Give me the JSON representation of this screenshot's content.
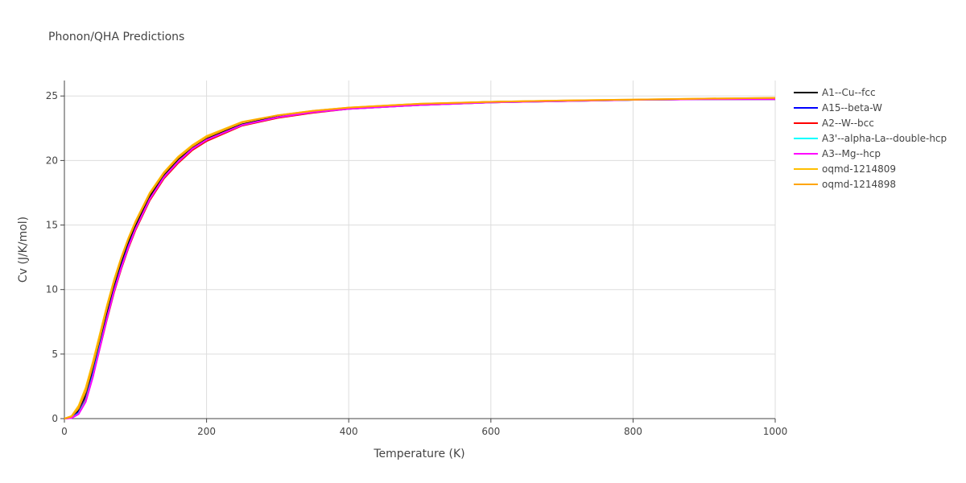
{
  "chart_data": {
    "type": "line",
    "title": "Phonon/QHA Predictions",
    "xlabel": "Temperature (K)",
    "ylabel": "Cv (J/K/mol)",
    "x": [
      0,
      10,
      20,
      30,
      40,
      50,
      60,
      70,
      80,
      90,
      100,
      120,
      140,
      160,
      180,
      200,
      250,
      300,
      350,
      400,
      500,
      600,
      700,
      800,
      900,
      1000
    ],
    "xlim": [
      0,
      1000
    ],
    "xticks": [
      0,
      200,
      400,
      600,
      800,
      1000
    ],
    "ylim": [
      0,
      26.2
    ],
    "yticks": [
      0,
      5,
      10,
      15,
      20,
      25
    ],
    "grid": true,
    "series": [
      {
        "name": "A1--Cu--fcc",
        "color": "#000000",
        "values": [
          0,
          0.08,
          0.6,
          1.8,
          3.7,
          5.9,
          8.1,
          10.2,
          12.0,
          13.6,
          14.9,
          17.2,
          18.9,
          20.1,
          21.0,
          21.7,
          22.8,
          23.4,
          23.8,
          24.05,
          24.35,
          24.55,
          24.62,
          24.7,
          24.75,
          24.75
        ]
      },
      {
        "name": "A15--beta-W",
        "color": "#0000ff",
        "values": [
          0,
          0.06,
          0.5,
          1.6,
          3.5,
          5.7,
          7.9,
          10.0,
          11.8,
          13.4,
          14.7,
          17.0,
          18.7,
          19.9,
          20.9,
          21.6,
          22.75,
          23.35,
          23.75,
          24.0,
          24.3,
          24.5,
          24.6,
          24.7,
          24.75,
          24.75
        ]
      },
      {
        "name": "A2--W--bcc",
        "color": "#ff0000",
        "values": [
          0,
          0.05,
          0.4,
          1.5,
          3.3,
          5.5,
          7.7,
          9.8,
          11.6,
          13.2,
          14.6,
          16.9,
          18.6,
          19.8,
          20.8,
          21.5,
          22.7,
          23.3,
          23.7,
          24.0,
          24.3,
          24.5,
          24.6,
          24.7,
          24.75,
          24.75
        ]
      },
      {
        "name": "A3'--alpha-La--double-hcp",
        "color": "#00ffff",
        "values": [
          0,
          0.05,
          0.4,
          1.4,
          3.3,
          5.6,
          7.8,
          9.9,
          11.7,
          13.3,
          14.7,
          17.0,
          18.7,
          19.9,
          20.9,
          21.6,
          22.75,
          23.35,
          23.75,
          24.0,
          24.3,
          24.5,
          24.6,
          24.7,
          24.75,
          24.75
        ]
      },
      {
        "name": "A3--Mg--hcp",
        "color": "#ff00ff",
        "values": [
          0,
          0.04,
          0.35,
          1.3,
          3.2,
          5.5,
          7.8,
          9.9,
          11.7,
          13.3,
          14.7,
          17.0,
          18.7,
          19.9,
          20.9,
          21.6,
          22.75,
          23.35,
          23.75,
          24.0,
          24.3,
          24.5,
          24.6,
          24.7,
          24.75,
          24.75
        ]
      },
      {
        "name": "oqmd-1214809",
        "color": "#ffbf00",
        "values": [
          0,
          0.2,
          1.0,
          2.4,
          4.4,
          6.6,
          8.8,
          10.8,
          12.5,
          14.0,
          15.3,
          17.5,
          19.1,
          20.3,
          21.2,
          21.9,
          23.0,
          23.5,
          23.85,
          24.1,
          24.4,
          24.55,
          24.65,
          24.72,
          24.8,
          24.85
        ]
      },
      {
        "name": "oqmd-1214898",
        "color": "#ffa500",
        "values": [
          0,
          0.15,
          0.8,
          2.1,
          4.1,
          6.3,
          8.6,
          10.6,
          12.4,
          13.9,
          15.2,
          17.4,
          19.0,
          20.2,
          21.1,
          21.8,
          22.95,
          23.5,
          23.85,
          24.1,
          24.4,
          24.55,
          24.65,
          24.72,
          24.8,
          24.85
        ]
      }
    ]
  }
}
